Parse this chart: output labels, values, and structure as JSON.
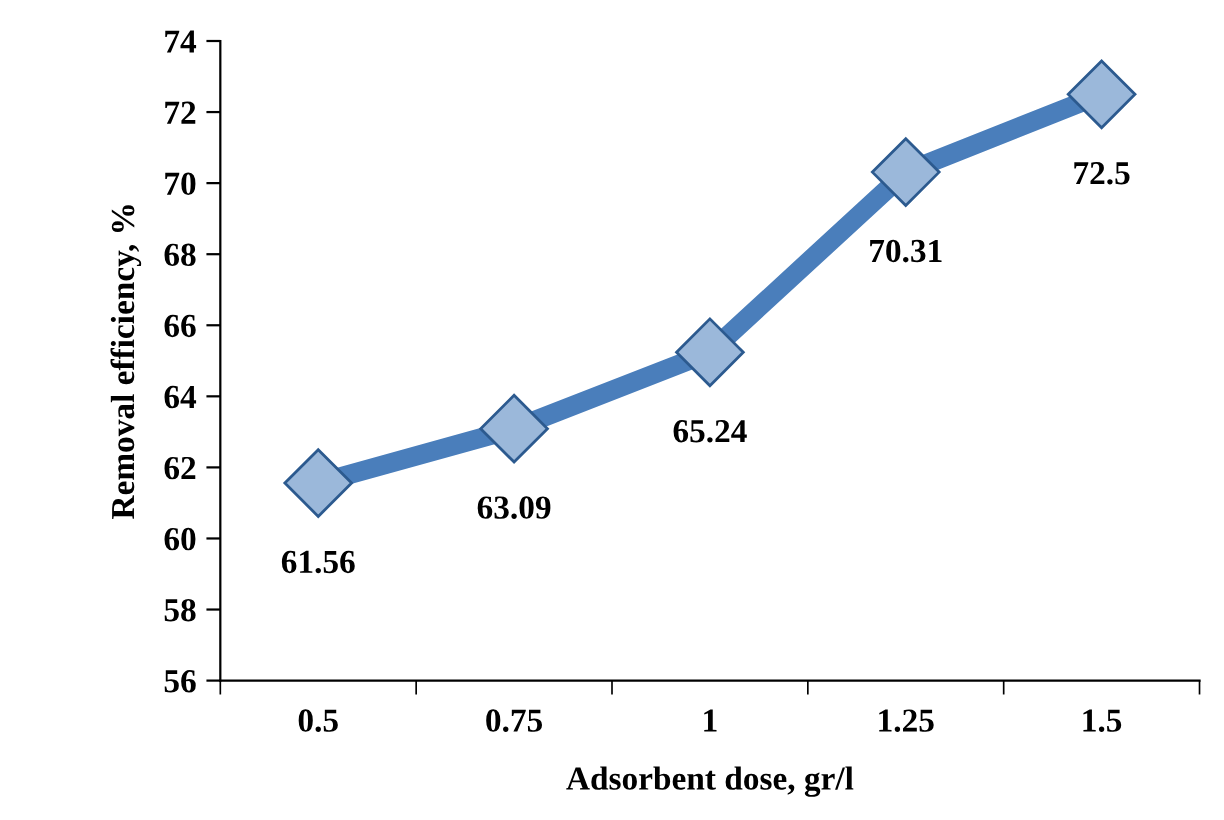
{
  "chart_data": {
    "type": "line",
    "xlabel": "Adsorbent dose, gr/l",
    "ylabel": "Removal efficiency, %",
    "categories": [
      "0.5",
      "0.75",
      "1",
      "1.25",
      "1.5"
    ],
    "series": [
      {
        "color": "#4a7ebb",
        "values": [
          61.56,
          63.09,
          65.24,
          70.31,
          72.5
        ]
      }
    ],
    "data_labels": true,
    "marker": "diamond",
    "line_style": "solid",
    "grid": false,
    "legend": false,
    "ylim": [
      56,
      74
    ],
    "yticks": [
      56,
      58,
      60,
      62,
      64,
      66,
      68,
      70,
      72,
      74
    ]
  }
}
